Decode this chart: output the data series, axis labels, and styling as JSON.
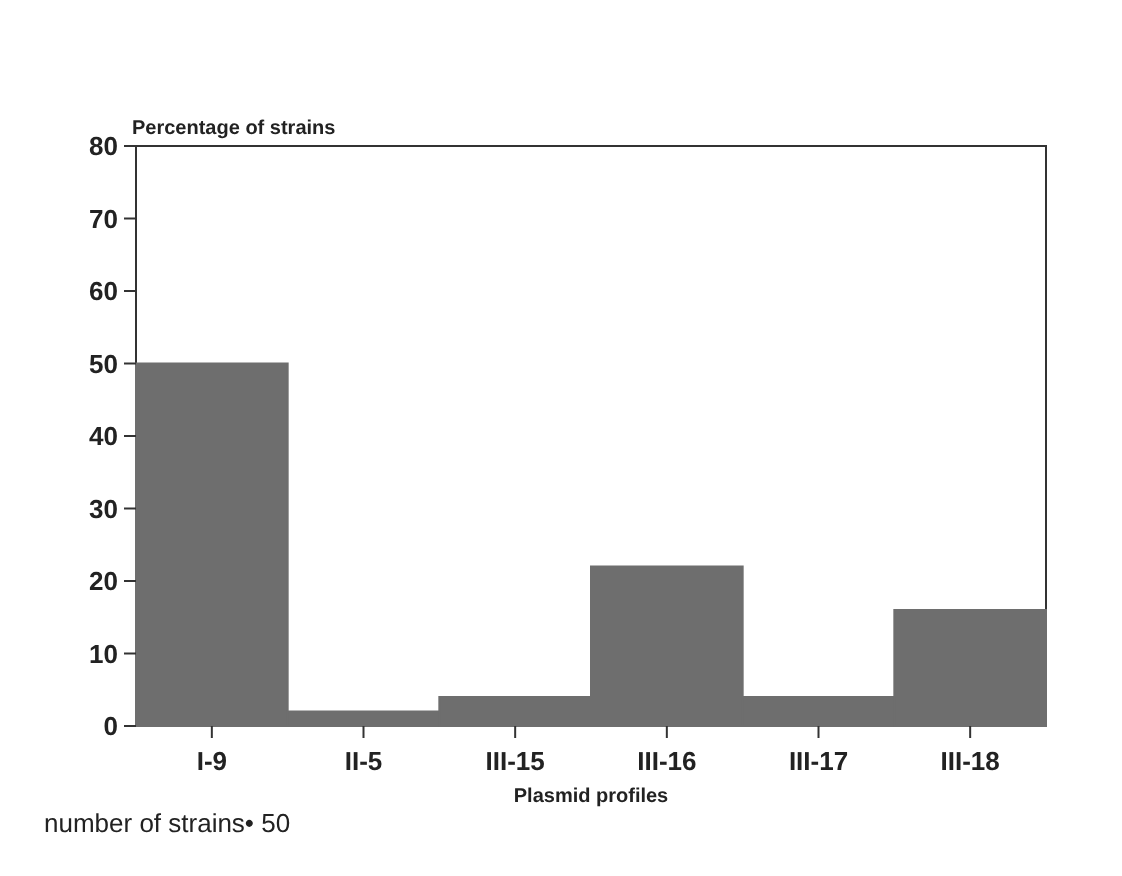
{
  "chart_data": {
    "type": "bar",
    "ylabel": "Percentage of strains",
    "xlabel": "Plasmid profiles",
    "categories": [
      "I-9",
      "II-5",
      "III-15",
      "III-16",
      "III-17",
      "III-18"
    ],
    "values": [
      50,
      2,
      4,
      22,
      4,
      16
    ],
    "color": "#6e6e6e",
    "ylim": [
      0,
      80
    ],
    "yticks": [
      0,
      10,
      20,
      30,
      40,
      50,
      60,
      70,
      80
    ],
    "annotations": [
      "number of strains• 50"
    ]
  }
}
